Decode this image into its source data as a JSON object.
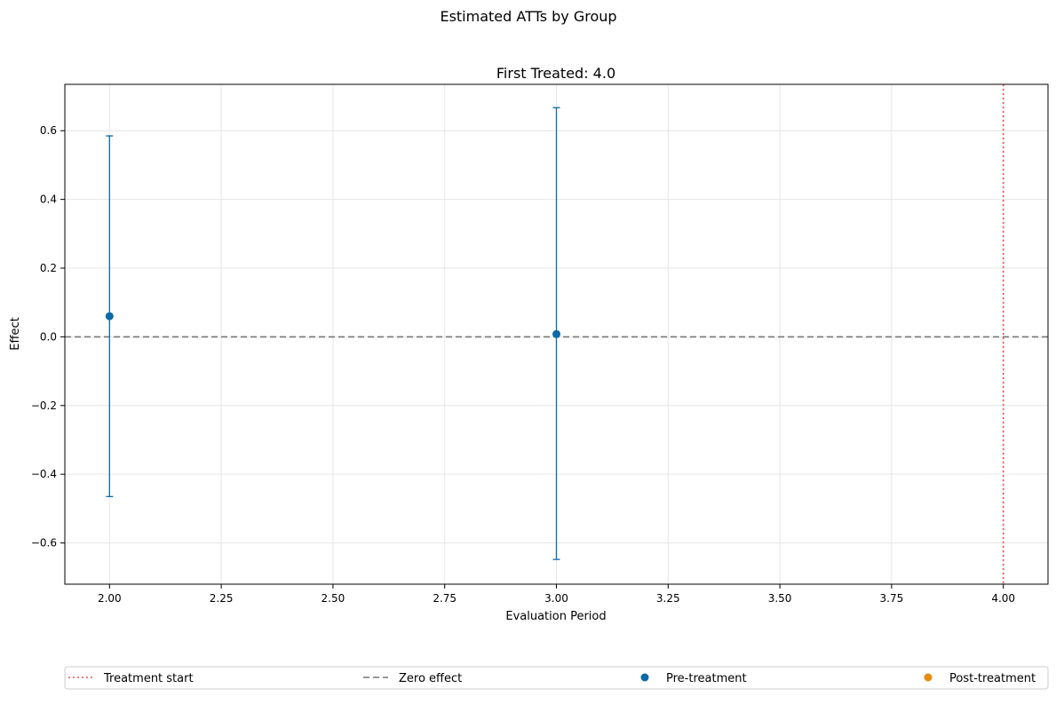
{
  "chart_data": {
    "type": "scatter",
    "suptitle": "Estimated ATTs by Group",
    "title": "First Treated: 4.0",
    "xlabel": "Evaluation Period",
    "ylabel": "Effect",
    "xlim": [
      1.9,
      4.1
    ],
    "ylim": [
      -0.72,
      0.735
    ],
    "xticks": [
      2.0,
      2.25,
      2.5,
      2.75,
      3.0,
      3.25,
      3.5,
      3.75,
      4.0
    ],
    "xtick_labels": [
      "2.00",
      "2.25",
      "2.50",
      "2.75",
      "3.00",
      "3.25",
      "3.50",
      "3.75",
      "4.00"
    ],
    "yticks": [
      -0.6,
      -0.4,
      -0.2,
      0.0,
      0.2,
      0.4,
      0.6
    ],
    "ytick_labels": [
      "−0.6",
      "−0.4",
      "−0.2",
      "0.0",
      "0.2",
      "0.4",
      "0.6"
    ],
    "grid": true,
    "series": [
      {
        "name": "Pre-treatment",
        "color": "#0b6aa8",
        "points": [
          {
            "x": 2.0,
            "y": 0.06,
            "ci_low": -0.465,
            "ci_high": 0.585
          },
          {
            "x": 3.0,
            "y": 0.008,
            "ci_low": -0.648,
            "ci_high": 0.667
          }
        ]
      },
      {
        "name": "Post-treatment",
        "color": "#e88a0c",
        "points": []
      }
    ],
    "reference_lines": [
      {
        "name": "Treatment start",
        "orientation": "vertical",
        "value": 4.0,
        "color": "#ff4d4d",
        "style": "dotted"
      },
      {
        "name": "Zero effect",
        "orientation": "horizontal",
        "value": 0.0,
        "color": "#777777",
        "style": "dashed"
      }
    ],
    "legend": {
      "placement": "bottom",
      "entries": [
        {
          "label": "Treatment start",
          "kind": "dotted-line",
          "color": "#ff4d4d"
        },
        {
          "label": "Zero effect",
          "kind": "dashed-line",
          "color": "#777777"
        },
        {
          "label": "Pre-treatment",
          "kind": "marker",
          "color": "#0b6aa8"
        },
        {
          "label": "Post-treatment",
          "kind": "marker",
          "color": "#e88a0c"
        }
      ]
    }
  }
}
